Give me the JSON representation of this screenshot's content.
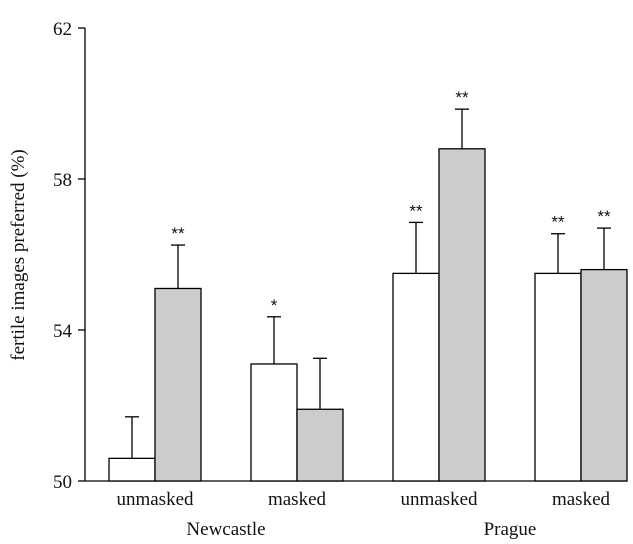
{
  "chart_data": {
    "type": "bar",
    "ylabel": "fertile images preferred (%)",
    "ylim": [
      50,
      62
    ],
    "yticks": [
      50,
      54,
      58,
      62
    ],
    "groups": [
      "Newcastle",
      "Prague"
    ],
    "categories": [
      "unmasked",
      "masked",
      "unmasked",
      "masked"
    ],
    "category_group": [
      0,
      0,
      1,
      1
    ],
    "series": [
      {
        "color": "#ffffff",
        "values": [
          50.6,
          53.1,
          55.5,
          55.5
        ],
        "errors": [
          1.1,
          1.25,
          1.35,
          1.05
        ],
        "significance": [
          "",
          "*",
          "**",
          "**"
        ]
      },
      {
        "color": "#cccccc",
        "values": [
          55.1,
          51.9,
          58.8,
          55.6
        ],
        "errors": [
          1.15,
          1.35,
          1.05,
          1.1
        ],
        "significance": [
          "**",
          "",
          "**",
          "**"
        ]
      }
    ]
  }
}
